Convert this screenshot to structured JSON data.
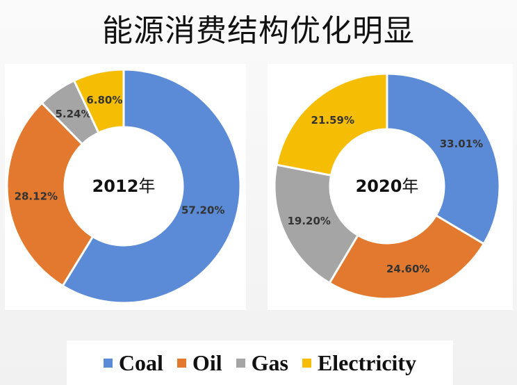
{
  "title": "能源消费结构优化明显",
  "colors": {
    "Coal": "#5b8ad6",
    "Oil": "#e2792f",
    "Gas": "#a5a5a5",
    "Electricity": "#f5be04"
  },
  "chart_data": [
    {
      "type": "pie",
      "variant": "donut",
      "center_label": {
        "year": "2012",
        "suffix": "年"
      },
      "categories": [
        "Coal",
        "Oil",
        "Gas",
        "Electricity"
      ],
      "values": [
        57.2,
        28.12,
        5.24,
        6.8
      ],
      "labels": [
        "57.20%",
        "28.12%",
        "5.24%",
        "6.80%"
      ],
      "start": "12 o'clock",
      "direction": "clockwise"
    },
    {
      "type": "pie",
      "variant": "donut",
      "center_label": {
        "year": "2020",
        "suffix": "年"
      },
      "categories": [
        "Coal",
        "Oil",
        "Gas",
        "Electricity"
      ],
      "values": [
        33.01,
        24.6,
        19.2,
        21.59
      ],
      "labels": [
        "33.01%",
        "24.60%",
        "19.20%",
        "21.59%"
      ],
      "start": "12 o'clock",
      "direction": "clockwise"
    }
  ],
  "legend": {
    "position": "bottom",
    "items": [
      "Coal",
      "Oil",
      "Gas",
      "Electricity"
    ]
  }
}
